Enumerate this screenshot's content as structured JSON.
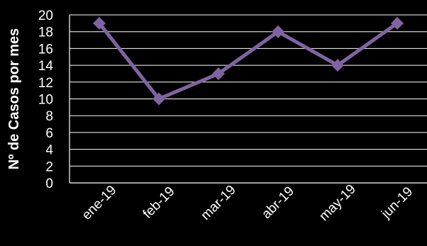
{
  "chart_data": {
    "type": "line",
    "title": "",
    "xlabel": "",
    "ylabel": "Nº de Casos por mes",
    "categories": [
      "ene-19",
      "feb-19",
      "mar-19",
      "abr-19",
      "may-19",
      "jun-19"
    ],
    "series": [
      {
        "values": [
          19,
          10,
          13,
          18,
          14,
          19
        ]
      }
    ],
    "ylim": [
      0,
      20
    ],
    "yticks": [
      0,
      2,
      4,
      6,
      8,
      10,
      12,
      14,
      16,
      18,
      20
    ],
    "grid": true,
    "colors": {
      "background": "#000000",
      "line": "#8064a2",
      "gridline": "#ffffff",
      "text": "#ffffff"
    }
  }
}
